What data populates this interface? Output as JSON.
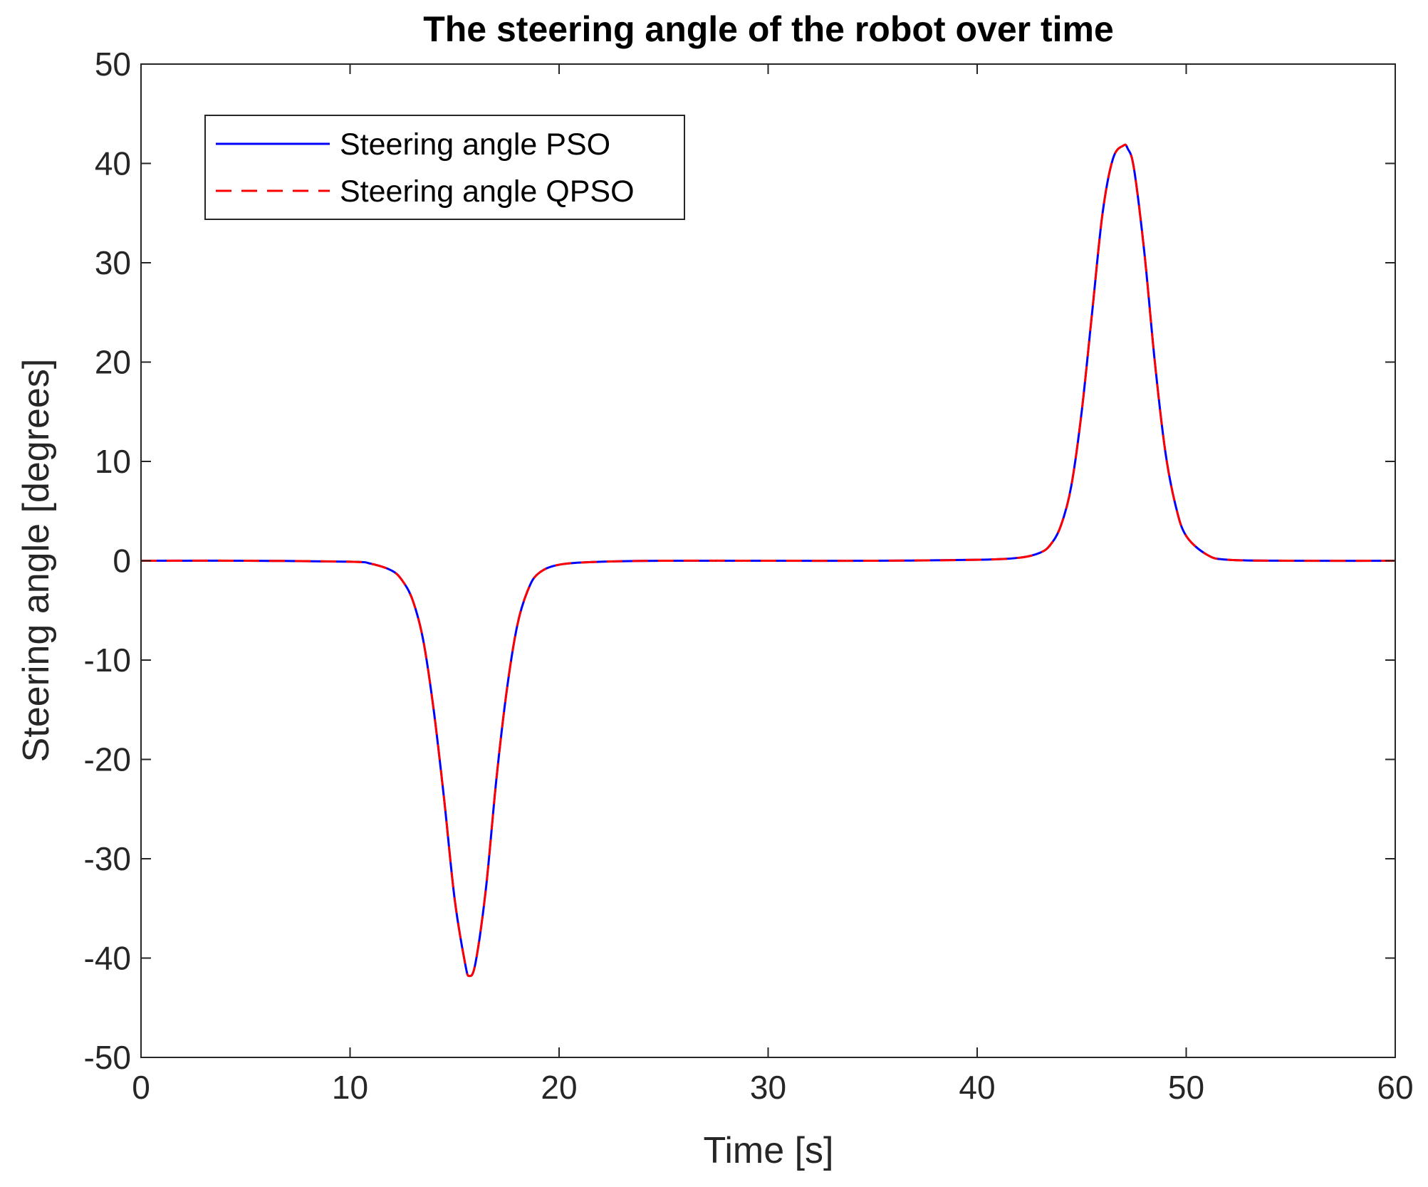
{
  "chart_data": {
    "type": "line",
    "title": "The steering angle of the robot over time",
    "xlabel": "Time [s]",
    "ylabel": "Steering angle [degrees]",
    "xlim": [
      0,
      60
    ],
    "ylim": [
      -50,
      50
    ],
    "xticks": [
      0,
      10,
      20,
      30,
      40,
      50,
      60
    ],
    "yticks": [
      -50,
      -40,
      -30,
      -20,
      -10,
      0,
      10,
      20,
      30,
      40,
      50
    ],
    "grid": false,
    "legend_position": "top-left",
    "x": [
      0,
      5,
      10,
      11,
      12,
      12.5,
      13,
      13.5,
      14,
      14.5,
      15,
      15.5,
      15.7,
      16,
      16.5,
      17,
      17.5,
      18,
      18.5,
      19,
      20,
      22,
      25,
      30,
      35,
      40,
      42,
      43,
      43.5,
      44,
      44.5,
      45,
      45.5,
      46,
      46.5,
      47,
      47.2,
      47.5,
      48,
      48.5,
      49,
      49.5,
      50,
      51,
      52,
      55,
      60
    ],
    "series": [
      {
        "name": "Steering angle PSO",
        "color": "#0000ff",
        "style": "solid",
        "values": [
          0,
          0,
          -0.1,
          -0.3,
          -1.0,
          -2.0,
          -4.0,
          -8.0,
          -15.0,
          -24.0,
          -34.0,
          -40.5,
          -41.8,
          -40.5,
          -33.0,
          -22.0,
          -13.0,
          -6.5,
          -3.0,
          -1.3,
          -0.4,
          -0.1,
          0,
          0,
          0,
          0.1,
          0.3,
          0.8,
          1.6,
          3.5,
          7.5,
          15.0,
          25.0,
          35.0,
          40.5,
          41.8,
          41.5,
          39.5,
          31.0,
          20.0,
          11.0,
          5.5,
          2.5,
          0.6,
          0.1,
          0,
          0
        ]
      },
      {
        "name": "Steering angle QPSO",
        "color": "#ff0000",
        "style": "dashed",
        "values": [
          0,
          0,
          -0.1,
          -0.3,
          -1.0,
          -2.0,
          -4.0,
          -8.0,
          -15.0,
          -24.0,
          -34.0,
          -40.5,
          -41.8,
          -40.5,
          -33.0,
          -22.0,
          -13.0,
          -6.5,
          -3.0,
          -1.3,
          -0.4,
          -0.1,
          0,
          0,
          0,
          0.1,
          0.3,
          0.8,
          1.6,
          3.5,
          7.5,
          15.0,
          25.0,
          35.0,
          40.5,
          41.8,
          41.5,
          39.5,
          31.0,
          20.0,
          11.0,
          5.5,
          2.5,
          0.6,
          0.1,
          0,
          0
        ]
      }
    ]
  }
}
